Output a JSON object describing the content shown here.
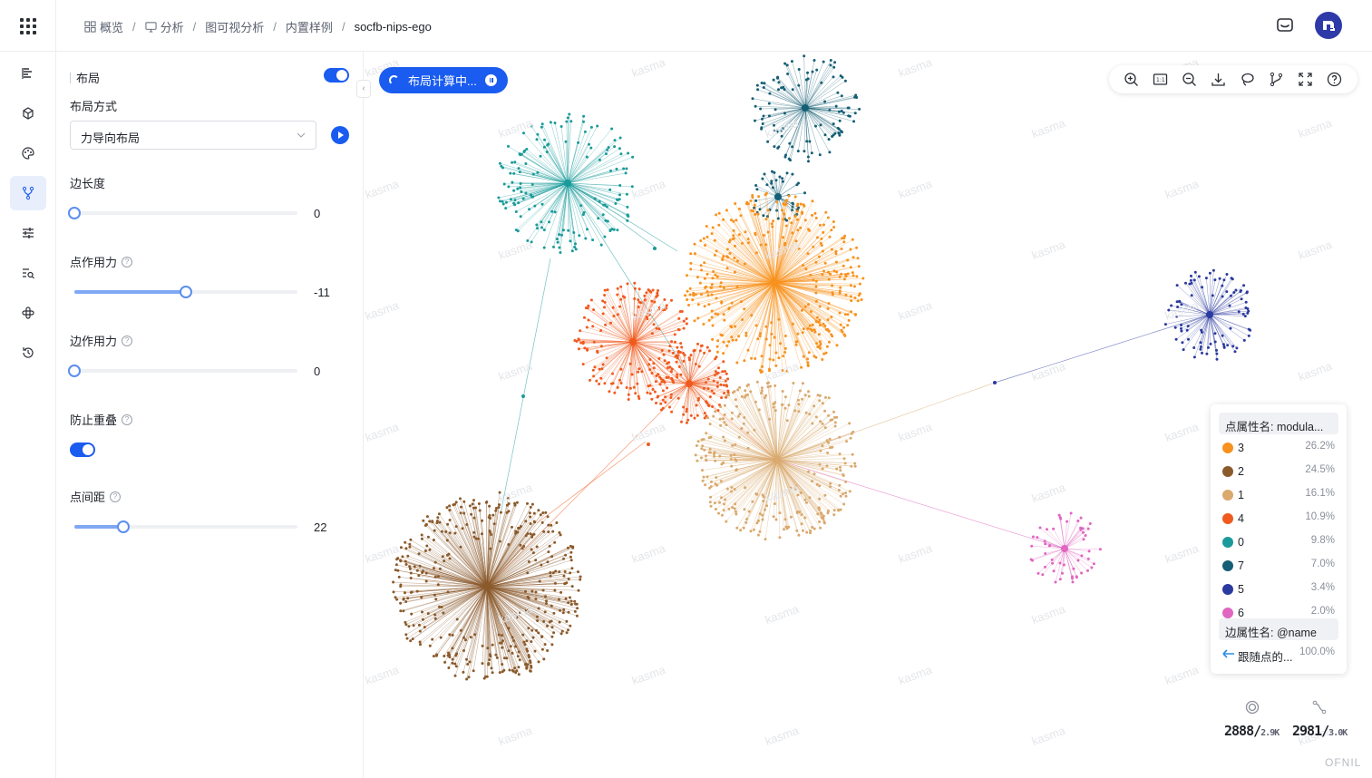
{
  "breadcrumb": [
    {
      "label": "概览",
      "icon": "grid-icon"
    },
    {
      "label": "分析",
      "icon": "monitor-icon"
    },
    {
      "label": "图可视分析"
    },
    {
      "label": "内置样例"
    },
    {
      "label": "socfb-nips-ego"
    }
  ],
  "sidebar": {
    "items": [
      {
        "name": "layers",
        "icon": "bar-list-icon"
      },
      {
        "name": "cube",
        "icon": "cube-icon"
      },
      {
        "name": "palette",
        "icon": "palette-icon"
      },
      {
        "name": "layout",
        "icon": "branch-icon",
        "active": true
      },
      {
        "name": "filter",
        "icon": "sliders-icon"
      },
      {
        "name": "search",
        "icon": "list-search-icon"
      },
      {
        "name": "plugin",
        "icon": "plugin-icon"
      },
      {
        "name": "history",
        "icon": "history-icon"
      }
    ]
  },
  "panel": {
    "title": "布局",
    "enabled": true,
    "layout_mode_label": "布局方式",
    "layout_mode_value": "力导向布局",
    "edge_length": {
      "label": "边长度",
      "value": "0",
      "ratio": 0
    },
    "node_force": {
      "label": "点作用力",
      "value": "-11",
      "ratio": 0.5
    },
    "edge_force": {
      "label": "边作用力",
      "value": "0",
      "ratio": 0
    },
    "prevent_overlap": {
      "label": "防止重叠",
      "enabled": true
    },
    "node_spacing": {
      "label": "点间距",
      "value": "22",
      "ratio": 0.22
    }
  },
  "canvas": {
    "status_text": "布局计算中...",
    "watermark": "kasma",
    "toolbar": [
      "zoom-in-icon",
      "fit-icon",
      "zoom-out-icon",
      "download-icon",
      "lasso-icon",
      "path-icon",
      "fullscreen-icon",
      "help-icon"
    ]
  },
  "legend": {
    "node_header": "点属性名: modula...",
    "items": [
      {
        "name": "3",
        "pct": "26.2%",
        "color": "#f7921e"
      },
      {
        "name": "2",
        "pct": "24.5%",
        "color": "#8b5a2b"
      },
      {
        "name": "1",
        "pct": "16.1%",
        "color": "#d9a96e"
      },
      {
        "name": "4",
        "pct": "10.9%",
        "color": "#f05a1e"
      },
      {
        "name": "0",
        "pct": "9.8%",
        "color": "#1a9a9a"
      },
      {
        "name": "7",
        "pct": "7.0%",
        "color": "#155e75"
      },
      {
        "name": "5",
        "pct": "3.4%",
        "color": "#2b3a9e"
      },
      {
        "name": "6",
        "pct": "2.0%",
        "color": "#e066c0"
      }
    ],
    "edge_header": "边属性名: @name",
    "edge_items": [
      {
        "name": "跟随点的...",
        "pct": "100.0%",
        "color": "#2b8fe0"
      }
    ]
  },
  "stats": {
    "nodes": "2888",
    "nodes_total": "2.9K",
    "edges": "2981",
    "edges_total": "3.0K"
  },
  "brand": "OFNIL"
}
